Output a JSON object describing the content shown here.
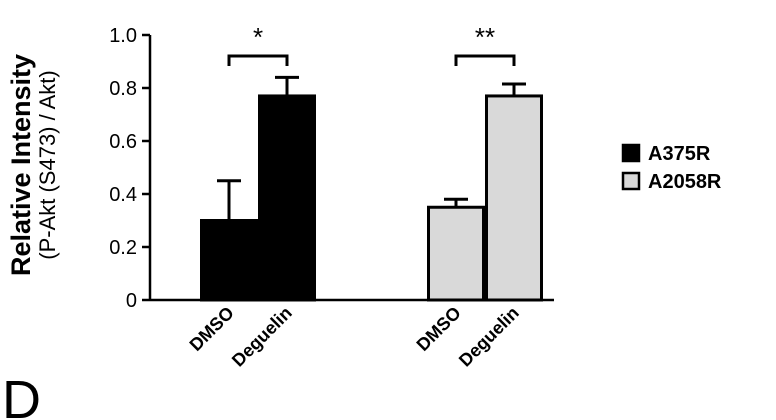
{
  "chart_data": {
    "type": "bar",
    "y_label": "Relative Intensity",
    "y_label_sub": "(P-Akt (S473) / Akt)",
    "panel_label": "D",
    "ylim": [
      0,
      1
    ],
    "yticks": [
      0,
      0.2,
      0.4,
      0.6,
      0.8,
      {
        "value": 1,
        "label": "1.0"
      }
    ],
    "series": [
      {
        "name": "A375R",
        "color": "#000000",
        "categories": [
          "DMSO",
          "Deguelin"
        ],
        "values": [
          0.3,
          0.77
        ],
        "errors": [
          0.15,
          0.07
        ],
        "significance": "*"
      },
      {
        "name": "A2058R",
        "color": "#d9d9d9",
        "categories": [
          "DMSO",
          "Deguelin"
        ],
        "values": [
          0.35,
          0.77
        ],
        "errors": [
          0.03,
          0.045
        ],
        "significance": "**"
      }
    ]
  }
}
